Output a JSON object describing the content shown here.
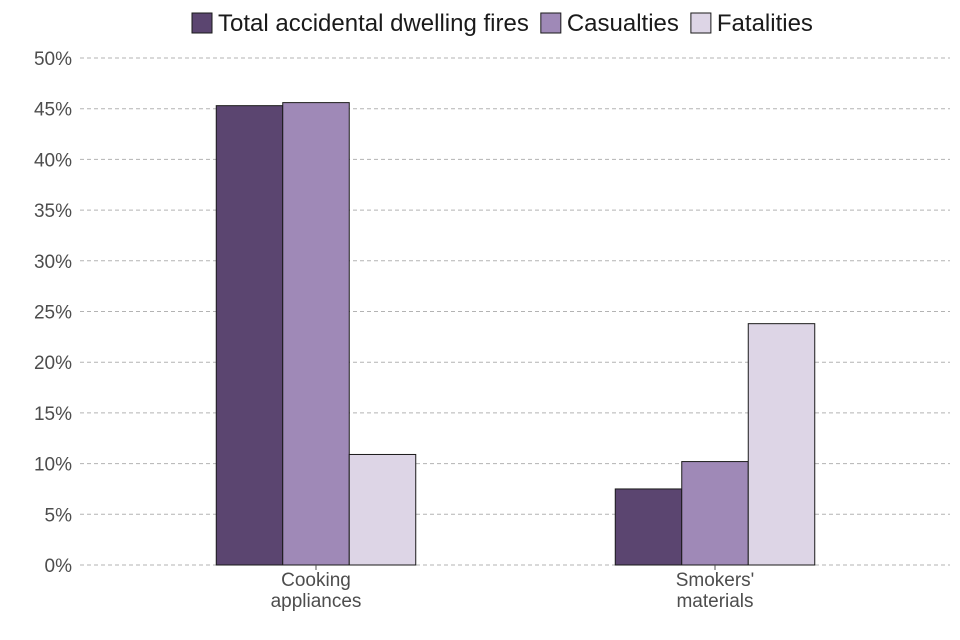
{
  "chart_data": {
    "type": "bar",
    "categories": [
      [
        "Cooking",
        "appliances"
      ],
      [
        "Smokers'",
        "materials"
      ]
    ],
    "series": [
      {
        "name": "Total accidental dwelling fires",
        "color": "#5b4570",
        "values": [
          45.3,
          7.5
        ]
      },
      {
        "name": "Casualties",
        "color": "#9f89b7",
        "values": [
          45.6,
          10.2
        ]
      },
      {
        "name": "Fatalities",
        "color": "#ddd5e6",
        "values": [
          10.9,
          23.8
        ]
      }
    ],
    "ylim": [
      0,
      50
    ],
    "yticks": [
      0,
      5,
      10,
      15,
      20,
      25,
      30,
      35,
      40,
      45,
      50
    ],
    "ytick_suffix": "%",
    "grid": true,
    "legend_position": "top"
  }
}
